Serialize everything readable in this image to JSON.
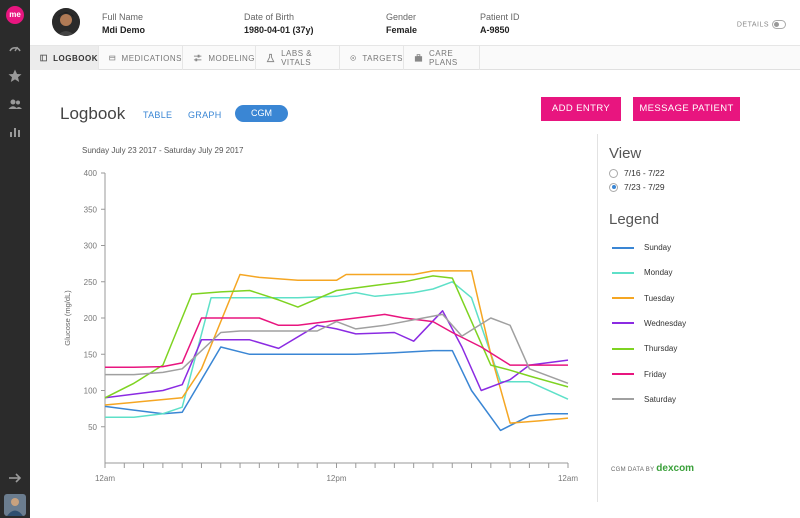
{
  "app": {
    "logo": "me"
  },
  "rail": {
    "icons": [
      "dashboard-icon",
      "star-icon",
      "people-icon",
      "bar-chart-icon",
      "arrow-right-icon"
    ]
  },
  "patient": {
    "fields": [
      {
        "label": "Full Name",
        "value": "Mdi Demo"
      },
      {
        "label": "Date of Birth",
        "value": "1980-04-01 (37y)"
      },
      {
        "label": "Gender",
        "value": "Female"
      },
      {
        "label": "Patient ID",
        "value": "A-9850"
      }
    ],
    "details_label": "DETAILS"
  },
  "tabs": [
    {
      "label": "LOGBOOK",
      "icon": "book-icon",
      "active": true
    },
    {
      "label": "MEDICATIONS",
      "icon": "pill-icon",
      "active": false
    },
    {
      "label": "MODELING",
      "icon": "sliders-icon",
      "active": false
    },
    {
      "label": "LABS & VITALS",
      "icon": "flask-icon",
      "active": false
    },
    {
      "label": "TARGETS",
      "icon": "target-icon",
      "active": false
    },
    {
      "label": "CARE PLANS",
      "icon": "briefcase-icon",
      "active": false
    }
  ],
  "main": {
    "title": "Logbook",
    "views": {
      "table": "TABLE",
      "graph": "GRAPH",
      "cgm": "CGM",
      "selected": "CGM"
    },
    "add_entry": "ADD ENTRY",
    "message_patient": "MESSAGE PATIENT",
    "date_range": "Sunday July 23 2017 - Saturday July 29 2017"
  },
  "side": {
    "view_heading": "View",
    "ranges": [
      {
        "label": "7/16 - 7/22",
        "selected": false
      },
      {
        "label": "7/23 - 7/29",
        "selected": true
      }
    ],
    "legend_heading": "Legend",
    "cgm_data_by": "CGM DATA BY",
    "dexcom": "dexcom"
  },
  "chart_data": {
    "type": "line",
    "ylabel": "Glucose (mg/dL)",
    "ylim": [
      0,
      400
    ],
    "yticks": [
      50,
      100,
      150,
      200,
      250,
      300,
      350,
      400
    ],
    "xlim": [
      0,
      24
    ],
    "xtick_labels": [
      {
        "hour": 0,
        "label": "12am"
      },
      {
        "hour": 12,
        "label": "12pm"
      },
      {
        "hour": 24,
        "label": "12am"
      }
    ],
    "grid": false,
    "series": [
      {
        "name": "Sunday",
        "color": "#3a86d4",
        "x": [
          0,
          1.5,
          3,
          4,
          6,
          7.5,
          9,
          11,
          13,
          15,
          17,
          18,
          19,
          20.5,
          22,
          23,
          24
        ],
        "y": [
          78,
          73,
          68,
          70,
          160,
          150,
          150,
          150,
          150,
          152,
          155,
          155,
          100,
          45,
          65,
          68,
          68
        ]
      },
      {
        "name": "Monday",
        "color": "#5ee0c8",
        "x": [
          0,
          1.5,
          3,
          4,
          5.5,
          6.5,
          8,
          10,
          12,
          13,
          14,
          16,
          17,
          18,
          19,
          20.5,
          22,
          24
        ],
        "y": [
          63,
          63,
          68,
          77,
          228,
          228,
          228,
          228,
          230,
          235,
          230,
          235,
          240,
          250,
          228,
          112,
          112,
          88
        ]
      },
      {
        "name": "Tuesday",
        "color": "#f5a623",
        "x": [
          0,
          2,
          4,
          5,
          7,
          8,
          10,
          12,
          12.5,
          14,
          16,
          17,
          19,
          20,
          21,
          22.5,
          24
        ],
        "y": [
          80,
          85,
          90,
          130,
          260,
          256,
          252,
          252,
          260,
          260,
          260,
          265,
          265,
          150,
          55,
          58,
          62
        ]
      },
      {
        "name": "Wednesday",
        "color": "#8b2be2",
        "x": [
          0,
          1.5,
          3,
          4,
          5,
          6,
          7.5,
          9,
          11,
          12,
          13,
          15,
          16,
          17.5,
          18.5,
          19.5,
          21,
          22,
          24
        ],
        "y": [
          90,
          95,
          100,
          108,
          170,
          170,
          170,
          158,
          190,
          185,
          178,
          180,
          168,
          210,
          160,
          100,
          115,
          135,
          142
        ]
      },
      {
        "name": "Thursday",
        "color": "#7ed321",
        "x": [
          0,
          1.5,
          3,
          4.5,
          6,
          7.5,
          9,
          10,
          12,
          14,
          15.5,
          17,
          18,
          20,
          21,
          22,
          24
        ],
        "y": [
          90,
          110,
          135,
          233,
          236,
          238,
          225,
          215,
          238,
          245,
          250,
          258,
          255,
          135,
          128,
          120,
          105
        ]
      },
      {
        "name": "Friday",
        "color": "#e8157f",
        "x": [
          0,
          1.5,
          3,
          4,
          5,
          6.5,
          8,
          9,
          10,
          11.5,
          13,
          14.5,
          15.5,
          17,
          18,
          19.5,
          21,
          22,
          24
        ],
        "y": [
          132,
          132,
          133,
          138,
          200,
          200,
          200,
          190,
          190,
          195,
          200,
          205,
          200,
          195,
          180,
          160,
          135,
          135,
          135
        ]
      },
      {
        "name": "Saturday",
        "color": "#a0a0a0",
        "x": [
          0,
          1.5,
          3,
          4,
          6,
          7,
          9,
          11,
          12,
          13,
          14.5,
          16.5,
          17.5,
          18.5,
          20,
          21,
          22,
          24
        ],
        "y": [
          122,
          122,
          125,
          130,
          180,
          182,
          182,
          182,
          195,
          185,
          190,
          200,
          205,
          175,
          200,
          190,
          130,
          110
        ]
      }
    ]
  }
}
